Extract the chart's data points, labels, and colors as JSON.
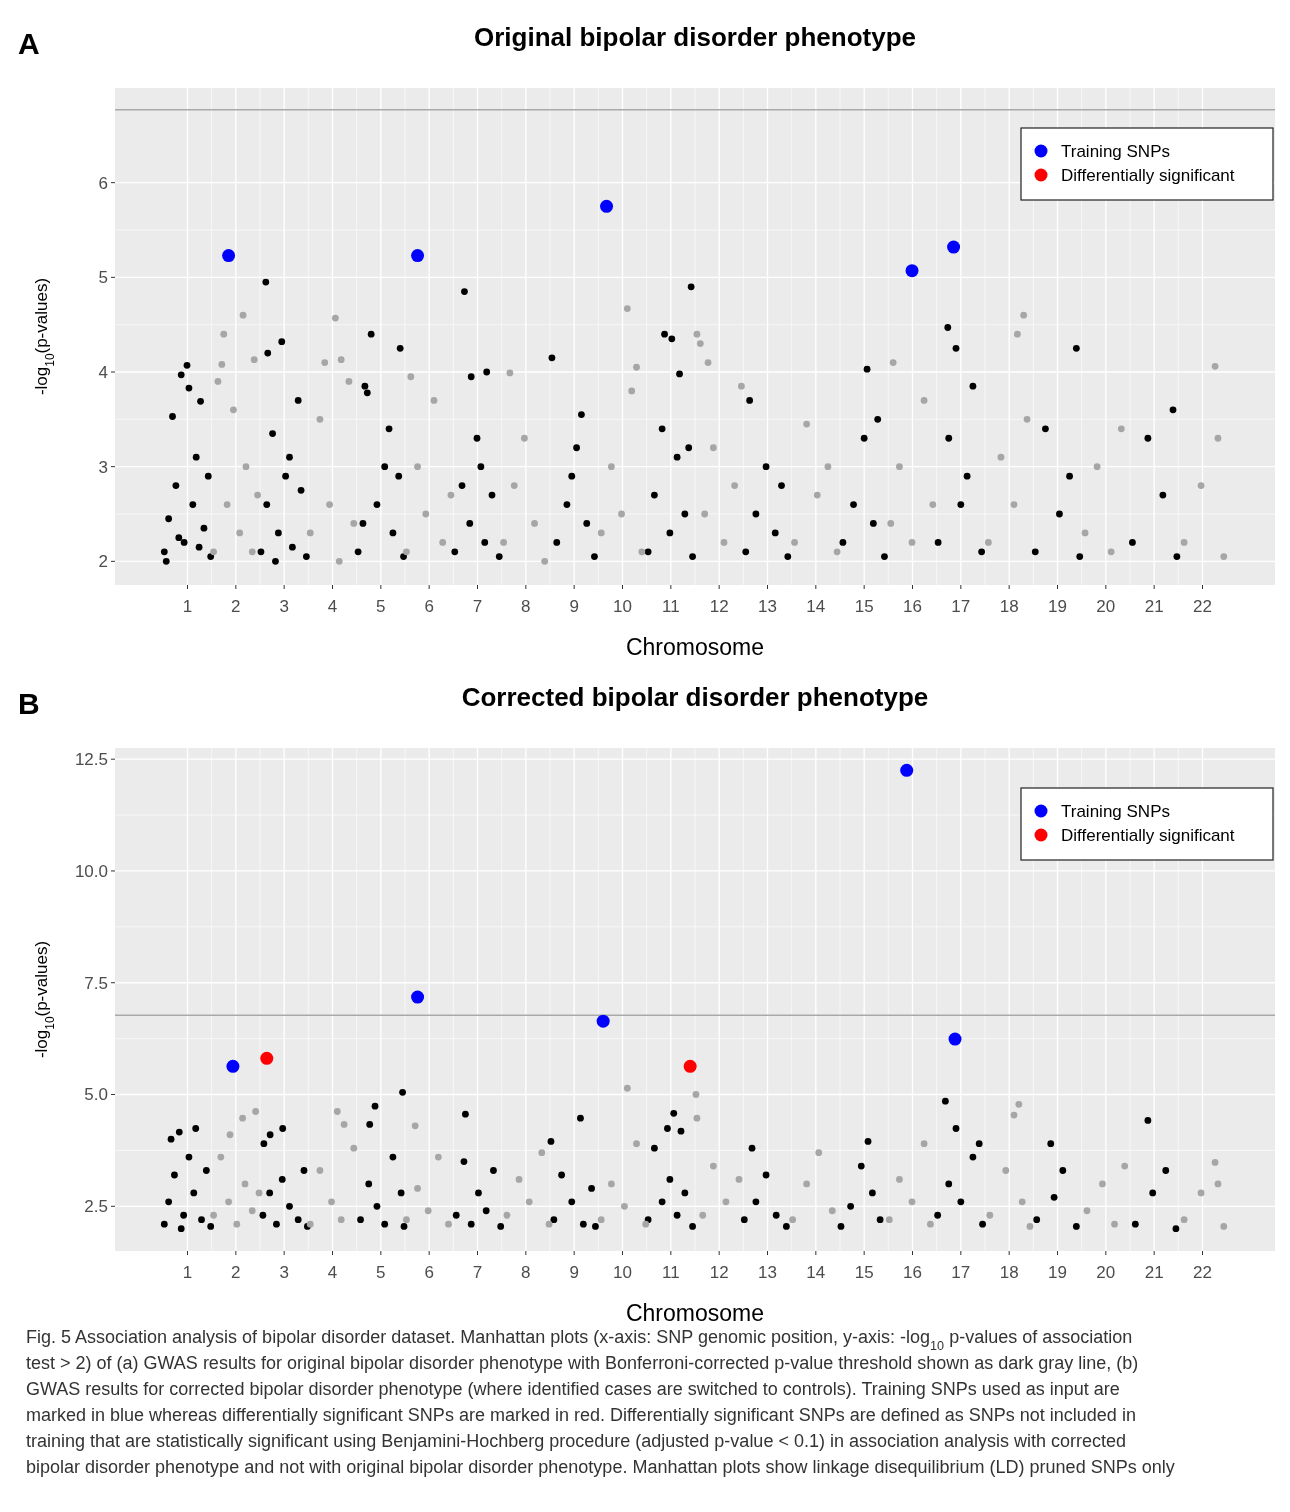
{
  "chart_data": [
    {
      "type": "scatter",
      "title": "Original bipolar disorder phenotype",
      "xlabel": "Chromosome",
      "ylabel": "-log$_{10}$(p-values)",
      "annotations": [
        "A"
      ],
      "xlim": [
        -0.5,
        23.5
      ],
      "ylim": [
        1.75,
        7.0
      ],
      "xticks": [
        1,
        2,
        3,
        4,
        5,
        6,
        7,
        8,
        9,
        10,
        11,
        12,
        13,
        14,
        15,
        16,
        17,
        18,
        19,
        20,
        21,
        22
      ],
      "yticks": [
        2,
        3,
        4,
        5,
        6
      ],
      "grid": true,
      "marker": "circle",
      "legend": "top right",
      "ref_lines": [
        {
          "axis": "y",
          "value": 6.77,
          "color": "#a9a9a9"
        }
      ],
      "series": [
        {
          "color": "#000000",
          "x": [
            0.52,
            0.56,
            0.61,
            0.69,
            0.76,
            0.82,
            0.87,
            0.93,
            0.99,
            1.03,
            1.11,
            1.18,
            1.24,
            1.27,
            1.34,
            1.43,
            1.48,
            2.52,
            2.62,
            2.64,
            2.66,
            2.76,
            2.82,
            2.88,
            2.95,
            3.03,
            3.11,
            3.17,
            3.29,
            3.35,
            3.46,
            4.53,
            4.63,
            4.67,
            4.72,
            4.8,
            4.92,
            5.08,
            5.17,
            5.25,
            5.37,
            5.4,
            5.47,
            6.53,
            6.68,
            6.73,
            6.84,
            6.87,
            6.99,
            7.07,
            7.15,
            7.19,
            7.3,
            7.45,
            8.54,
            8.64,
            8.85,
            8.95,
            9.05,
            9.15,
            9.26,
            9.42,
            10.53,
            10.66,
            10.82,
            10.87,
            10.98,
            11.02,
            11.13,
            11.18,
            11.29,
            11.37,
            11.42,
            11.45,
            12.55,
            12.63,
            12.76,
            12.97,
            13.16,
            13.29,
            13.42,
            14.56,
            14.78,
            15.0,
            15.06,
            15.19,
            15.28,
            15.42,
            16.53,
            16.73,
            16.75,
            16.9,
            17.0,
            17.13,
            17.25,
            17.43,
            18.54,
            18.75,
            19.04,
            19.25,
            19.39,
            19.46,
            20.55,
            20.87,
            21.18,
            21.39,
            21.47
          ],
          "values": [
            2.1,
            2.0,
            2.45,
            3.53,
            2.8,
            2.25,
            3.97,
            2.2,
            4.07,
            3.83,
            2.6,
            3.1,
            2.15,
            3.69,
            2.35,
            2.9,
            2.05,
            2.1,
            4.95,
            2.6,
            4.2,
            3.35,
            2.0,
            2.3,
            4.32,
            2.9,
            3.1,
            2.15,
            3.7,
            2.75,
            2.05,
            2.1,
            2.4,
            3.85,
            3.78,
            4.4,
            2.6,
            3.0,
            3.4,
            2.3,
            2.9,
            4.25,
            2.05,
            2.1,
            2.8,
            4.85,
            2.4,
            3.95,
            3.3,
            3.0,
            2.2,
            4.0,
            2.7,
            2.05,
            4.15,
            2.2,
            2.6,
            2.9,
            3.2,
            3.55,
            2.4,
            2.05,
            2.1,
            2.7,
            3.4,
            4.4,
            2.3,
            4.35,
            3.1,
            3.98,
            2.5,
            3.2,
            4.9,
            2.05,
            2.1,
            3.7,
            2.5,
            3.0,
            2.3,
            2.8,
            2.05,
            2.2,
            2.6,
            3.3,
            4.03,
            2.4,
            3.5,
            2.05,
            2.2,
            4.47,
            3.3,
            4.25,
            2.6,
            2.9,
            3.85,
            2.1,
            2.1,
            3.4,
            2.5,
            2.9,
            4.25,
            2.05,
            2.2,
            3.3,
            2.7,
            3.6,
            2.05
          ]
        },
        {
          "color": "#a6a6a6",
          "x": [
            1.54,
            1.63,
            1.71,
            1.75,
            1.82,
            1.95,
            2.08,
            2.15,
            2.21,
            2.34,
            2.38,
            2.45,
            3.54,
            3.74,
            3.84,
            3.94,
            4.06,
            4.14,
            4.18,
            4.34,
            4.44,
            5.53,
            5.62,
            5.76,
            5.93,
            6.1,
            6.28,
            6.45,
            7.54,
            7.67,
            7.76,
            7.97,
            8.18,
            8.39,
            9.56,
            9.77,
            9.98,
            10.1,
            10.19,
            10.29,
            10.4,
            11.54,
            11.61,
            11.7,
            11.77,
            11.88,
            12.1,
            12.32,
            12.46,
            13.56,
            13.81,
            14.03,
            14.25,
            14.44,
            15.55,
            15.6,
            15.73,
            15.99,
            16.24,
            16.42,
            17.57,
            17.83,
            18.1,
            18.17,
            18.3,
            18.37,
            19.57,
            19.82,
            20.11,
            20.32,
            21.62,
            21.97,
            22.26,
            22.32,
            22.44
          ],
          "values": [
            2.1,
            3.9,
            4.08,
            4.4,
            2.6,
            3.6,
            2.3,
            4.6,
            3.0,
            2.1,
            4.13,
            2.7,
            2.3,
            3.5,
            4.1,
            2.6,
            4.57,
            2.0,
            4.13,
            3.9,
            2.4,
            2.1,
            3.95,
            3.0,
            2.5,
            3.7,
            2.2,
            2.7,
            2.2,
            3.99,
            2.8,
            3.3,
            2.4,
            2.0,
            2.3,
            3.0,
            2.5,
            4.67,
            3.8,
            4.05,
            2.1,
            4.4,
            4.3,
            2.5,
            4.1,
            3.2,
            2.2,
            2.8,
            3.85,
            2.2,
            3.45,
            2.7,
            3.0,
            2.1,
            2.4,
            4.1,
            3.0,
            2.2,
            3.7,
            2.6,
            2.2,
            3.1,
            2.6,
            4.4,
            4.6,
            3.5,
            2.3,
            3.0,
            2.1,
            3.4,
            2.2,
            2.8,
            4.06,
            3.3,
            2.05
          ]
        },
        {
          "name": "Training SNPs",
          "color": "#0000ff",
          "x": [
            1.85,
            5.76,
            9.67,
            15.99,
            16.85
          ],
          "values": [
            5.23,
            5.23,
            5.75,
            5.07,
            5.32
          ]
        },
        {
          "name": "Differentially significant",
          "color": "#ff0000"
        }
      ]
    },
    {
      "type": "scatter",
      "title": "Corrected bipolar disorder phenotype",
      "xlabel": "Chromosome",
      "ylabel": "-log$_{10}$(p-values)",
      "annotations": [
        "B",
        "Fig. 5 Association analysis of bipolar disorder dataset. Manhattan plots (x-axis: SNP genomic position, y-axis: -log$_{10}$ p-values of association test > 2) of (a) GWAS results for original bipolar disorder phenotype with Bonferroni-corrected p-value threshold shown as dark gray line, (b) GWAS results for corrected bipolar disorder phenotype (where identified cases are switched to controls). Training SNPs used as input are marked in blue whereas differentially significant SNPs are marked in red. Differentially significant SNPs are defined as SNPs not included in training that are statistically significant using Benjamini-Hochberg procedure (adjusted p-value < 0.1) in association analysis with corrected bipolar disorder phenotype and not with original bipolar disorder phenotype. Manhattan plots show linkage disequilibrium (LD) pruned SNPs only"
      ],
      "xlim": [
        -0.5,
        23.5
      ],
      "ylim": [
        1.5,
        12.75
      ],
      "xticks": [
        1,
        2,
        3,
        4,
        5,
        6,
        7,
        8,
        9,
        10,
        11,
        12,
        13,
        14,
        15,
        16,
        17,
        18,
        19,
        20,
        21,
        22
      ],
      "yticks": [
        {
          "value": 2.5,
          "label": "2.5"
        },
        {
          "value": 5,
          "label": "5.0"
        },
        {
          "value": 7.5,
          "label": "7.5"
        },
        {
          "value": 10,
          "label": "10.0"
        },
        {
          "value": 12.5,
          "label": "12.5"
        }
      ],
      "grid": true,
      "marker": "circle",
      "legend": "top right",
      "ref_lines": [
        {
          "axis": "y",
          "value": 6.77,
          "color": "#a9a9a9"
        }
      ],
      "series": [
        {
          "color": "#000000",
          "x": [
            0.52,
            0.61,
            0.66,
            0.73,
            0.83,
            0.87,
            0.92,
            1.03,
            1.13,
            1.17,
            1.29,
            1.39,
            1.48,
            2.56,
            2.58,
            2.7,
            2.71,
            2.84,
            2.96,
            2.97,
            3.11,
            3.29,
            3.41,
            3.48,
            4.58,
            4.75,
            4.77,
            4.88,
            4.92,
            5.08,
            5.25,
            5.42,
            5.45,
            5.48,
            6.56,
            6.72,
            6.75,
            6.87,
            7.02,
            7.18,
            7.33,
            7.48,
            8.52,
            8.58,
            8.74,
            8.95,
            9.13,
            9.19,
            9.36,
            9.44,
            10.53,
            10.66,
            10.82,
            10.93,
            10.98,
            11.06,
            11.13,
            11.21,
            11.29,
            11.45,
            12.52,
            12.68,
            12.76,
            12.97,
            13.18,
            13.39,
            14.52,
            14.72,
            14.94,
            15.08,
            15.17,
            15.33,
            16.52,
            16.68,
            16.75,
            16.9,
            17.0,
            17.25,
            17.38,
            17.45,
            18.57,
            18.86,
            18.93,
            19.11,
            19.39,
            20.61,
            20.87,
            20.97,
            21.24,
            21.45
          ],
          "values": [
            2.1,
            2.6,
            4.0,
            3.2,
            4.16,
            2.0,
            2.3,
            3.6,
            2.8,
            4.24,
            2.2,
            3.3,
            2.05,
            2.3,
            3.9,
            2.8,
            4.1,
            2.1,
            3.1,
            4.24,
            2.5,
            2.2,
            3.3,
            2.05,
            2.2,
            3.0,
            4.33,
            4.74,
            2.5,
            2.1,
            3.6,
            2.8,
            5.05,
            2.05,
            2.3,
            3.5,
            4.56,
            2.1,
            2.8,
            2.4,
            3.3,
            2.05,
            3.95,
            2.2,
            3.2,
            2.6,
            4.47,
            2.1,
            2.9,
            2.05,
            2.2,
            3.8,
            2.6,
            4.24,
            3.1,
            4.58,
            2.3,
            4.18,
            2.8,
            2.05,
            2.2,
            3.8,
            2.6,
            3.2,
            2.3,
            2.05,
            2.05,
            2.5,
            3.4,
            3.95,
            2.8,
            2.2,
            2.3,
            4.85,
            3.0,
            4.24,
            2.6,
            3.6,
            3.9,
            2.1,
            2.2,
            3.9,
            2.7,
            3.3,
            2.05,
            2.1,
            4.42,
            2.8,
            3.3,
            2.0
          ]
        },
        {
          "color": "#a6a6a6",
          "x": [
            1.54,
            1.69,
            1.85,
            1.88,
            2.02,
            2.14,
            2.19,
            2.34,
            2.41,
            2.48,
            3.54,
            3.74,
            3.98,
            4.1,
            4.18,
            4.24,
            4.44,
            5.53,
            5.71,
            5.76,
            5.98,
            6.19,
            6.4,
            7.61,
            7.86,
            8.07,
            8.33,
            8.48,
            9.56,
            9.77,
            10.04,
            10.1,
            10.29,
            10.48,
            11.52,
            11.54,
            11.66,
            11.88,
            12.14,
            12.41,
            13.52,
            13.81,
            14.06,
            14.34,
            15.52,
            15.73,
            15.99,
            16.24,
            16.37,
            17.6,
            17.93,
            18.1,
            18.2,
            18.27,
            18.43,
            19.61,
            19.93,
            20.18,
            20.39,
            21.62,
            21.97,
            22.26,
            22.32,
            22.44
          ],
          "values": [
            2.3,
            3.6,
            2.6,
            4.1,
            2.1,
            4.47,
            3.0,
            2.4,
            4.62,
            2.8,
            2.1,
            3.3,
            2.6,
            4.62,
            2.2,
            4.33,
            3.8,
            2.2,
            4.3,
            2.9,
            2.4,
            3.6,
            2.1,
            2.3,
            3.1,
            2.6,
            3.7,
            2.1,
            2.2,
            3.0,
            2.5,
            5.14,
            3.9,
            2.1,
            5.0,
            4.47,
            2.3,
            3.4,
            2.6,
            3.1,
            2.2,
            3.0,
            3.7,
            2.4,
            2.2,
            3.1,
            2.6,
            3.9,
            2.1,
            2.3,
            3.3,
            4.54,
            4.78,
            2.6,
            2.05,
            2.4,
            3.0,
            2.1,
            3.4,
            2.2,
            2.8,
            3.48,
            3.0,
            2.05
          ]
        },
        {
          "name": "Training SNPs",
          "color": "#0000ff",
          "x": [
            1.94,
            5.76,
            9.6,
            15.88,
            16.88
          ],
          "values": [
            5.63,
            7.18,
            6.64,
            12.25,
            6.24
          ]
        },
        {
          "name": "Differentially significant",
          "color": "#ff0000",
          "x": [
            2.64,
            11.4
          ],
          "values": [
            5.81,
            5.63
          ]
        }
      ]
    }
  ]
}
